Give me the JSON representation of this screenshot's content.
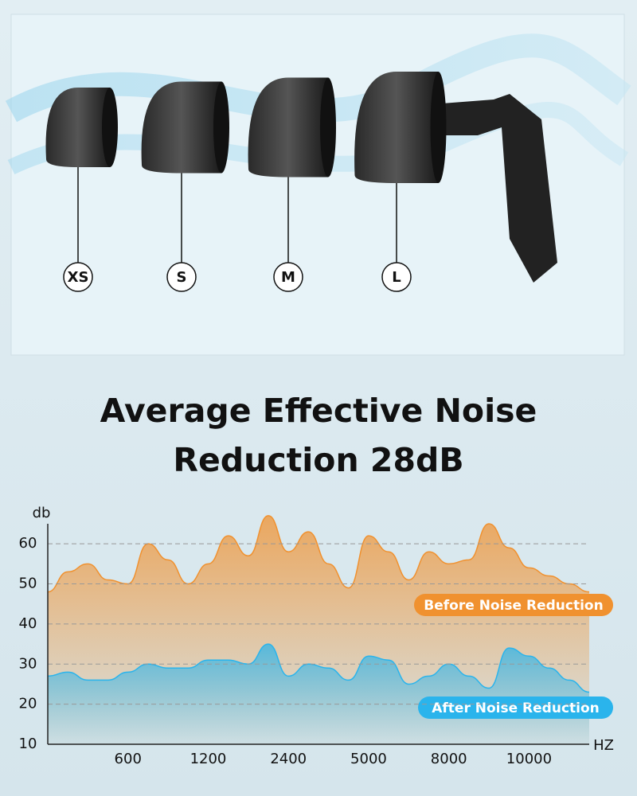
{
  "product_image": {
    "size_labels": [
      "XS",
      "S",
      "M",
      "L"
    ]
  },
  "chart_data": {
    "type": "area",
    "title": "Average Effective Noise Reduction 28dB",
    "y_label": "db",
    "x_label": "HZ",
    "categories": [
      null,
      null,
      null,
      null,
      "600",
      null,
      null,
      null,
      "1200",
      null,
      null,
      null,
      "2400",
      null,
      null,
      null,
      "5000",
      null,
      null,
      null,
      "8000",
      null,
      null,
      null,
      "10000",
      null,
      null,
      null
    ],
    "series": [
      {
        "name": "Before Noise Reduction",
        "color": "#f0912f",
        "values": [
          48,
          53,
          55,
          51,
          50,
          60,
          56,
          50,
          55,
          62,
          57,
          67,
          58,
          63,
          55,
          49,
          62,
          58,
          51,
          58,
          55,
          56,
          65,
          59,
          54,
          52,
          50,
          48
        ]
      },
      {
        "name": "After Noise Reduction",
        "color": "#2ab4ec",
        "values": [
          27,
          28,
          26,
          26,
          28,
          30,
          29,
          29,
          31,
          31,
          30,
          35,
          27,
          30,
          29,
          26,
          32,
          31,
          25,
          27,
          30,
          27,
          24,
          34,
          32,
          29,
          26,
          23
        ]
      }
    ],
    "ylim": [
      10,
      65
    ],
    "yticks": [
      10,
      20,
      30,
      40,
      50,
      60
    ],
    "grid": true
  }
}
